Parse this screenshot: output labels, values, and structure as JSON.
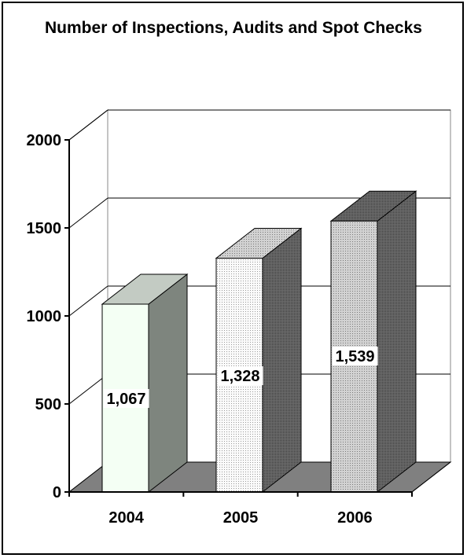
{
  "chart_data": {
    "type": "bar",
    "title": "Number of Inspections, Audits and Spot Checks",
    "categories": [
      "2004",
      "2005",
      "2006"
    ],
    "values": [
      1067,
      1328,
      1539
    ],
    "value_labels": [
      "1,067",
      "1,328",
      "1,539"
    ],
    "ylim": [
      0,
      2000
    ],
    "yticks": [
      "0",
      "500",
      "1000",
      "1500",
      "2000"
    ],
    "grid": true,
    "legend": "none",
    "colors": {
      "bar_fronts": [
        "#f4fff4",
        "#f0f0f0",
        "#c0c0c0"
      ],
      "bar_sides": [
        "#7e857e",
        "#777777",
        "#5a5a5a"
      ],
      "bar_tops": [
        "#c3cbc3",
        "#a8a8a8",
        "#8c8c8c"
      ],
      "floor": "#808080"
    }
  }
}
